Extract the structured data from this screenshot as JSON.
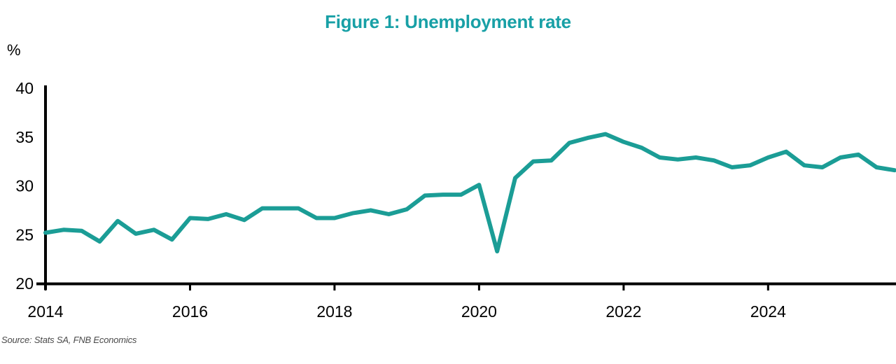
{
  "title": "Figure 1: Unemployment rate",
  "source_note": "Source: Stats SA, FNB Economics",
  "colors": {
    "title": "#18a0a6",
    "line": "#1b9d96",
    "axis": "#000000",
    "source_text": "#4a4a4a",
    "background": "#ffffff"
  },
  "chart_data": {
    "type": "line",
    "title": "Figure 1: Unemployment rate",
    "xlabel": "",
    "ylabel": "%",
    "ylim": [
      20,
      40
    ],
    "yticks": [
      20,
      25,
      30,
      35,
      40
    ],
    "xticks": [
      2014,
      2016,
      2018,
      2020,
      2022,
      2024
    ],
    "x_start_year": 2014,
    "frequency": "quarterly",
    "grid": false,
    "legend_position": "none",
    "categories": [
      "2014Q1",
      "2014Q2",
      "2014Q3",
      "2014Q4",
      "2015Q1",
      "2015Q2",
      "2015Q3",
      "2015Q4",
      "2016Q1",
      "2016Q2",
      "2016Q3",
      "2016Q4",
      "2017Q1",
      "2017Q2",
      "2017Q3",
      "2017Q4",
      "2018Q1",
      "2018Q2",
      "2018Q3",
      "2018Q4",
      "2019Q1",
      "2019Q2",
      "2019Q3",
      "2019Q4",
      "2020Q1",
      "2020Q2",
      "2020Q3",
      "2020Q4",
      "2021Q1",
      "2021Q2",
      "2021Q3",
      "2021Q4",
      "2022Q1",
      "2022Q2",
      "2022Q3",
      "2022Q4",
      "2023Q1",
      "2023Q2",
      "2023Q3",
      "2023Q4",
      "2024Q1",
      "2024Q2",
      "2024Q3",
      "2024Q4",
      "2025Q1",
      "2025Q2",
      "2025Q3",
      "2025Q4"
    ],
    "series": [
      {
        "name": "Unemployment rate (%)",
        "color": "#1b9d96",
        "values": [
          25.2,
          25.5,
          25.4,
          24.3,
          26.4,
          25.1,
          25.5,
          24.5,
          26.7,
          26.6,
          27.1,
          26.5,
          27.7,
          27.7,
          27.7,
          26.7,
          26.7,
          27.2,
          27.5,
          27.1,
          27.6,
          29.0,
          29.1,
          29.1,
          30.1,
          23.3,
          30.8,
          32.5,
          32.6,
          34.4,
          34.9,
          35.3,
          34.5,
          33.9,
          32.9,
          32.7,
          32.9,
          32.6,
          31.9,
          32.1,
          32.9,
          33.5,
          32.1,
          31.9,
          32.9,
          33.2,
          31.9,
          31.6
        ]
      }
    ],
    "source": "Source: Stats SA, FNB Economics"
  }
}
